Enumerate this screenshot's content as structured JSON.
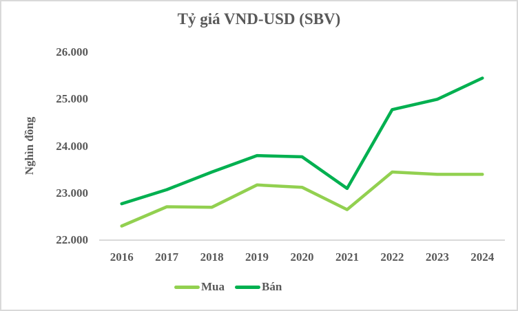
{
  "chart_data": {
    "type": "line",
    "title": "Tỷ giá VND-USD (SBV)",
    "ylabel": "Nghìn đồng",
    "xlabel": "",
    "categories": [
      "2016",
      "2017",
      "2018",
      "2019",
      "2020",
      "2021",
      "2022",
      "2023",
      "2024"
    ],
    "series": [
      {
        "name": "Mua",
        "color": "#92D050",
        "values": [
          22300,
          22710,
          22700,
          23175,
          23125,
          22650,
          23450,
          23400,
          23400
        ]
      },
      {
        "name": "Bán",
        "color": "#00B050",
        "values": [
          22775,
          23075,
          23450,
          23800,
          23775,
          23100,
          24780,
          25000,
          25450
        ]
      }
    ],
    "ylim": [
      22000,
      26000
    ],
    "yticks": [
      22000,
      23000,
      24000,
      25000,
      26000
    ],
    "ytick_labels": [
      "22.000",
      "23.000",
      "24.000",
      "25.000",
      "26.000"
    ],
    "grid": false,
    "legend_position": "bottom-center",
    "text_color": "#595959",
    "axis_color": "#D9D9D9"
  }
}
